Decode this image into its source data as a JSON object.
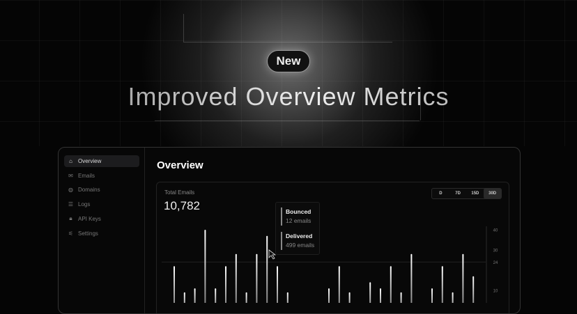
{
  "hero": {
    "badge": "New",
    "title": "Improved Overview Metrics"
  },
  "sidebar": {
    "items": [
      {
        "label": "Overview",
        "icon": "home-icon",
        "glyph": "⌂",
        "active": true
      },
      {
        "label": "Emails",
        "icon": "mail-icon",
        "glyph": "✉",
        "active": false
      },
      {
        "label": "Domains",
        "icon": "globe-icon",
        "glyph": "◍",
        "active": false
      },
      {
        "label": "Logs",
        "icon": "logs-icon",
        "glyph": "☰",
        "active": false
      },
      {
        "label": "API Keys",
        "icon": "lock-icon",
        "glyph": "🔒︎",
        "active": false
      },
      {
        "label": "Settings",
        "icon": "sliders-icon",
        "glyph": "⚟",
        "active": false
      }
    ]
  },
  "main": {
    "title": "Overview",
    "card": {
      "label": "Total Emails",
      "value": "10,782",
      "ranges": [
        {
          "label": "D",
          "selected": false
        },
        {
          "label": "7D",
          "selected": false
        },
        {
          "label": "15D",
          "selected": false
        },
        {
          "label": "30D",
          "selected": true
        }
      ]
    }
  },
  "tooltip": {
    "bounced_label": "Bounced",
    "bounced_value": "12 emails",
    "delivered_label": "Delivered",
    "delivered_value": "499 emails"
  },
  "chart_data": {
    "type": "bar",
    "yticks": [
      40,
      30,
      24,
      10
    ],
    "gridline": 24,
    "ylim": [
      0,
      40
    ],
    "values": [
      22,
      9,
      11,
      40,
      11,
      22,
      28,
      9,
      28,
      37,
      22,
      9,
      0,
      0,
      0,
      11,
      22,
      9,
      0,
      14,
      11,
      22,
      9,
      28,
      0,
      11,
      22,
      9,
      28,
      17
    ],
    "colors": {
      "bar": "#e8e8e8"
    }
  }
}
